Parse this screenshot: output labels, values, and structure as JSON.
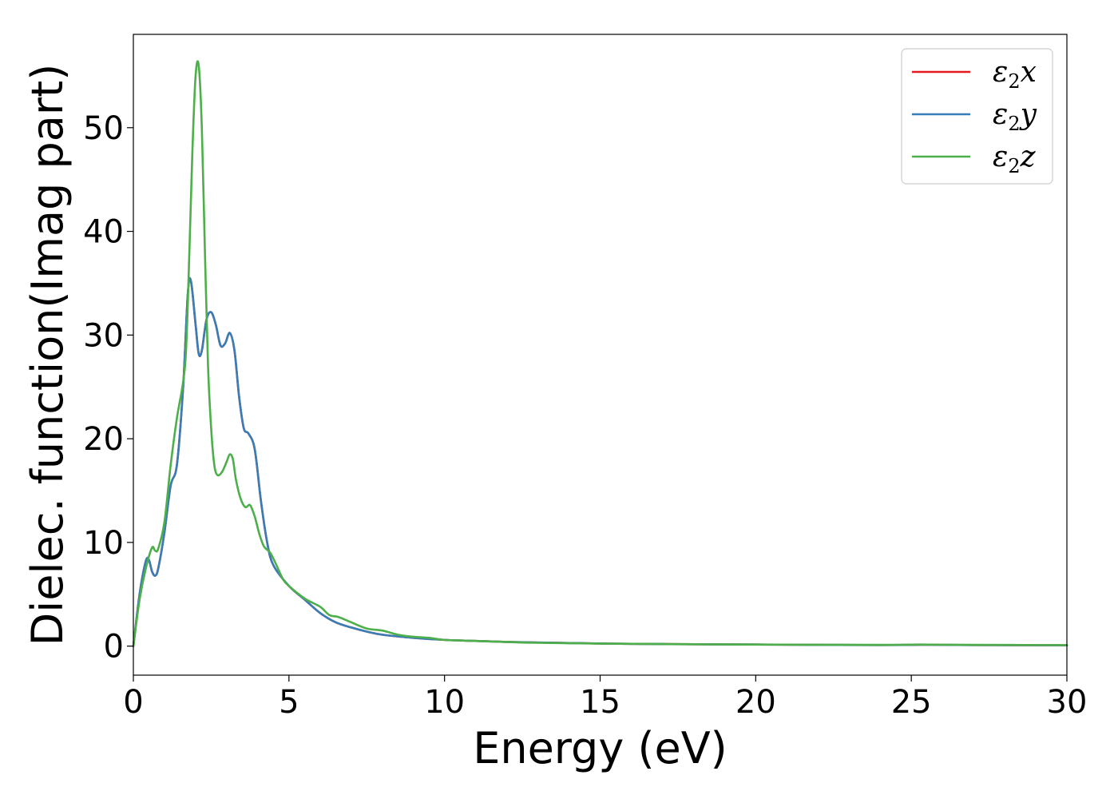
{
  "chart_data": {
    "type": "line",
    "xlabel": "Energy (eV)",
    "ylabel": "Dielec. function(Imag part)",
    "xlim": [
      0,
      30
    ],
    "ylim": [
      -2.8,
      59
    ],
    "xticks": [
      0,
      5,
      10,
      15,
      20,
      25,
      30
    ],
    "yticks": [
      0,
      10,
      20,
      30,
      40,
      50
    ],
    "grid": false,
    "legend_position": "top-right",
    "series": [
      {
        "name": "ε2x",
        "legend_base": "ε",
        "legend_sub": "2",
        "legend_var": "x",
        "color": "#e41a1c",
        "x": [
          0,
          0.2,
          0.4,
          0.5,
          0.6,
          0.7,
          0.8,
          1.0,
          1.2,
          1.4,
          1.6,
          1.75,
          1.85,
          2.0,
          2.1,
          2.2,
          2.35,
          2.5,
          2.65,
          2.8,
          2.95,
          3.1,
          3.25,
          3.4,
          3.55,
          3.7,
          3.9,
          4.1,
          4.3,
          4.5,
          5.0,
          5.5,
          6.0,
          6.5,
          7.0,
          7.5,
          8.0,
          9.0,
          10.0,
          11.0,
          12.0,
          13.0,
          14.0,
          15.0,
          16.0,
          17.0,
          18.0,
          20.0,
          22.0,
          24.0,
          25.3,
          27.0,
          30.0
        ],
        "y": [
          0,
          5.0,
          8.2,
          8.3,
          7.2,
          6.8,
          7.5,
          11.0,
          15.5,
          17.5,
          25.0,
          34.0,
          35.2,
          31.0,
          28.2,
          28.5,
          31.5,
          32.2,
          31.0,
          29.0,
          29.2,
          30.2,
          28.5,
          24.0,
          21.0,
          20.5,
          19.0,
          14.0,
          10.0,
          7.8,
          5.8,
          4.5,
          3.2,
          2.3,
          1.8,
          1.4,
          1.1,
          0.8,
          0.6,
          0.5,
          0.4,
          0.35,
          0.3,
          0.25,
          0.22,
          0.2,
          0.18,
          0.15,
          0.12,
          0.1,
          0.13,
          0.1,
          0.08
        ]
      },
      {
        "name": "ε2y",
        "legend_base": "ε",
        "legend_sub": "2",
        "legend_var": "y",
        "color": "#377eb8",
        "x": [
          0,
          0.2,
          0.4,
          0.5,
          0.6,
          0.7,
          0.8,
          1.0,
          1.2,
          1.4,
          1.6,
          1.75,
          1.85,
          2.0,
          2.1,
          2.2,
          2.35,
          2.5,
          2.65,
          2.8,
          2.95,
          3.1,
          3.25,
          3.4,
          3.55,
          3.7,
          3.9,
          4.1,
          4.3,
          4.5,
          5.0,
          5.5,
          6.0,
          6.5,
          7.0,
          7.5,
          8.0,
          9.0,
          10.0,
          11.0,
          12.0,
          13.0,
          14.0,
          15.0,
          16.0,
          17.0,
          18.0,
          20.0,
          22.0,
          24.0,
          25.3,
          27.0,
          30.0
        ],
        "y": [
          0,
          5.0,
          8.2,
          8.3,
          7.2,
          6.8,
          7.5,
          11.0,
          15.5,
          17.5,
          25.0,
          34.0,
          35.2,
          31.0,
          28.2,
          28.5,
          31.5,
          32.2,
          31.0,
          29.0,
          29.2,
          30.2,
          28.5,
          24.0,
          21.0,
          20.5,
          19.0,
          14.0,
          10.0,
          7.8,
          5.8,
          4.5,
          3.2,
          2.3,
          1.8,
          1.4,
          1.1,
          0.8,
          0.6,
          0.5,
          0.4,
          0.35,
          0.3,
          0.25,
          0.22,
          0.2,
          0.18,
          0.15,
          0.12,
          0.1,
          0.13,
          0.1,
          0.08
        ]
      },
      {
        "name": "ε2z",
        "legend_base": "ε",
        "legend_sub": "2",
        "legend_var": "z",
        "color": "#4daf4a",
        "x": [
          0,
          0.2,
          0.4,
          0.6,
          0.7,
          0.8,
          1.0,
          1.2,
          1.4,
          1.6,
          1.7,
          1.8,
          1.9,
          2.0,
          2.1,
          2.2,
          2.3,
          2.4,
          2.5,
          2.6,
          2.7,
          2.85,
          3.0,
          3.1,
          3.2,
          3.3,
          3.45,
          3.6,
          3.75,
          3.9,
          4.05,
          4.2,
          4.4,
          4.6,
          4.8,
          5.0,
          5.5,
          6.0,
          6.3,
          6.6,
          7.0,
          7.5,
          8.0,
          8.5,
          9.0,
          9.5,
          10.0,
          11.0,
          12.0,
          13.0,
          15.0,
          17.0,
          20.0,
          24.0,
          25.3,
          27.0,
          30.0
        ],
        "y": [
          0,
          4.5,
          7.5,
          9.5,
          9.2,
          9.4,
          12.0,
          17.5,
          22.0,
          25.5,
          29.0,
          38.0,
          48.0,
          55.0,
          56.0,
          50.0,
          38.0,
          27.0,
          21.0,
          17.5,
          16.5,
          16.8,
          17.8,
          18.5,
          18.0,
          16.0,
          14.2,
          13.4,
          13.6,
          12.5,
          10.8,
          9.6,
          9.0,
          7.8,
          6.5,
          5.8,
          4.6,
          3.8,
          3.0,
          2.8,
          2.3,
          1.7,
          1.5,
          1.1,
          0.9,
          0.8,
          0.6,
          0.5,
          0.4,
          0.32,
          0.25,
          0.2,
          0.15,
          0.12,
          0.15,
          0.12,
          0.1
        ]
      }
    ]
  }
}
